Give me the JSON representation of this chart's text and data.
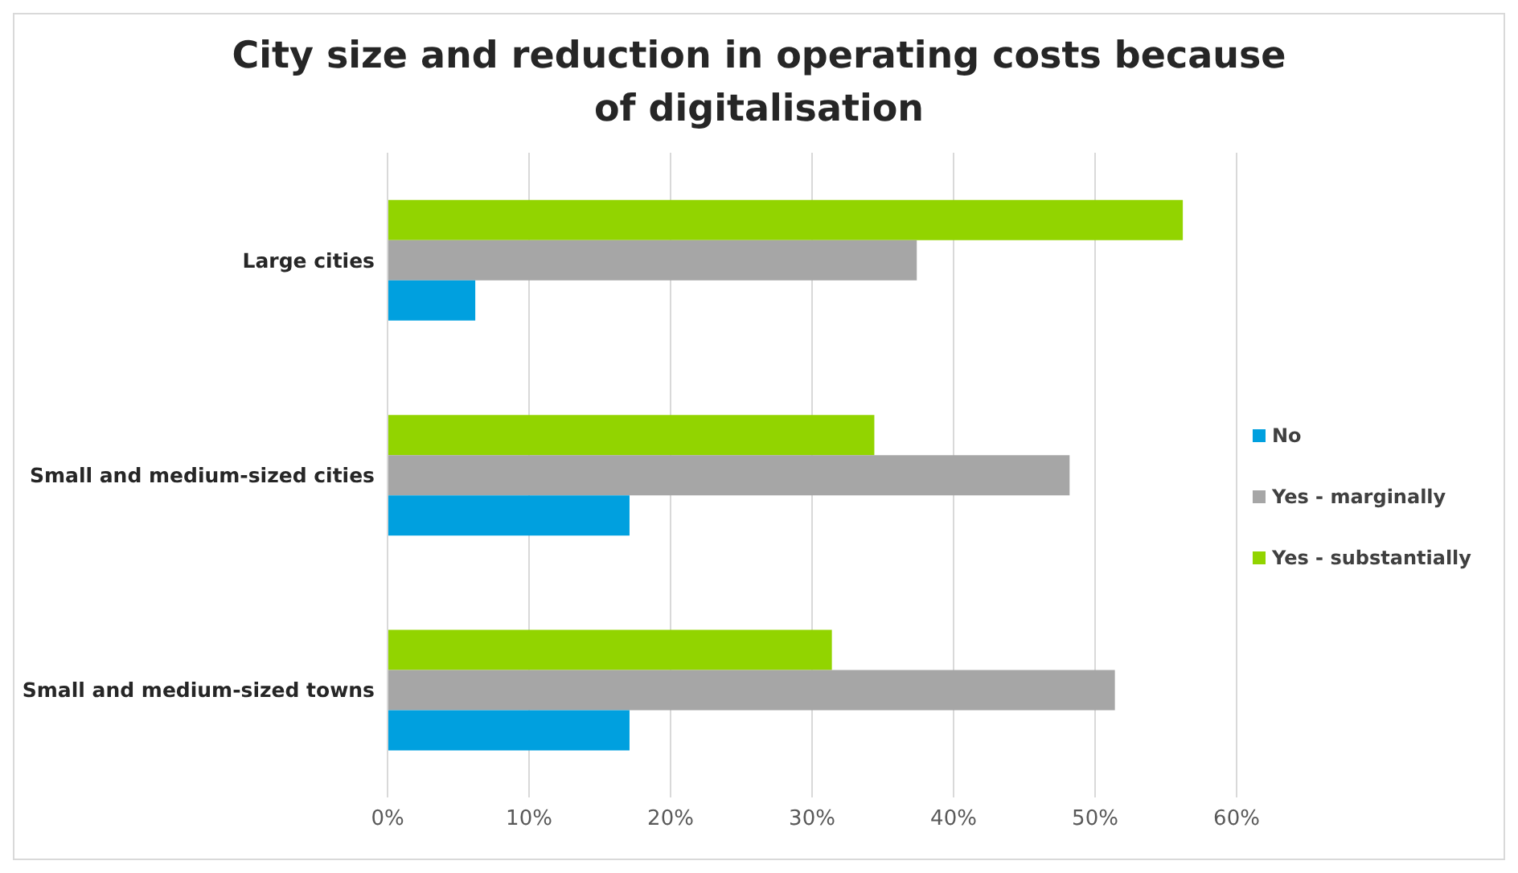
{
  "chart_data": {
    "type": "bar",
    "orientation": "horizontal",
    "title": "City size and reduction in operating costs because of digitalisation",
    "categories": [
      "Large cities",
      "Small and medium-sized cities",
      "Small and medium-sized towns"
    ],
    "series": [
      {
        "name": "Yes - substantially",
        "color": "#92d400",
        "values": [
          56.2,
          34.4,
          31.4
        ]
      },
      {
        "name": "Yes - marginally",
        "color": "#a6a6a6",
        "values": [
          37.4,
          48.2,
          51.4
        ]
      },
      {
        "name": "No",
        "color": "#00a0df",
        "values": [
          6.2,
          17.1,
          17.1
        ]
      }
    ],
    "xlim": [
      0,
      60
    ],
    "xticks": [
      {
        "value": 0,
        "label": "0%"
      },
      {
        "value": 10,
        "label": "10%"
      },
      {
        "value": 20,
        "label": "20%"
      },
      {
        "value": 30,
        "label": "30%"
      },
      {
        "value": 40,
        "label": "40%"
      },
      {
        "value": 50,
        "label": "50%"
      },
      {
        "value": 60,
        "label": "60%"
      }
    ],
    "grid": "x",
    "legend": "right"
  }
}
